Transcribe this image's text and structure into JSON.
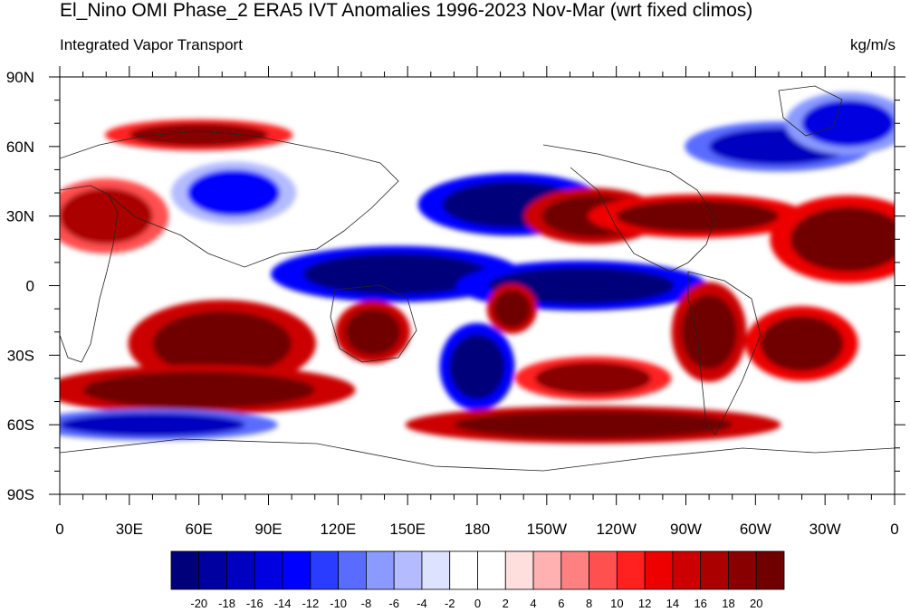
{
  "title": "El_Nino OMI Phase_2 ERA5 IVT Anomalies 1996-2023 Nov-Mar (wrt fixed climos)",
  "left_label": "Integrated Vapor Transport",
  "right_label": "kg/m/s",
  "map": {
    "lon_ticks": [
      "0",
      "30E",
      "60E",
      "90E",
      "120E",
      "150E",
      "180",
      "150W",
      "120W",
      "90W",
      "60W",
      "30W",
      "0"
    ],
    "lat_ticks": [
      "90N",
      "60N",
      "30N",
      "0",
      "30S",
      "60S",
      "90S"
    ],
    "lon_range": [
      0,
      360
    ],
    "lat_range": [
      -90,
      90
    ],
    "anomalies": [
      {
        "lon": 195,
        "lat": 35,
        "rlon": 30,
        "rlat": 10,
        "value": -22
      },
      {
        "lon": 230,
        "lat": 30,
        "rlon": 22,
        "rlat": 9,
        "value": 22
      },
      {
        "lon": 145,
        "lat": 5,
        "rlon": 40,
        "rlat": 9,
        "value": -22
      },
      {
        "lon": 225,
        "lat": 0,
        "rlon": 40,
        "rlat": 8,
        "value": -22
      },
      {
        "lon": 275,
        "lat": 30,
        "rlon": 35,
        "rlat": 7,
        "value": 20
      },
      {
        "lon": 340,
        "lat": 20,
        "rlon": 25,
        "rlat": 14,
        "value": 20
      },
      {
        "lon": 70,
        "lat": -25,
        "rlon": 30,
        "rlat": 14,
        "value": 22
      },
      {
        "lon": 135,
        "lat": -20,
        "rlon": 12,
        "rlat": 10,
        "value": 22
      },
      {
        "lon": 195,
        "lat": -10,
        "rlon": 8,
        "rlat": 8,
        "value": 22
      },
      {
        "lon": 180,
        "lat": -35,
        "rlon": 12,
        "rlat": 14,
        "value": -22
      },
      {
        "lon": 280,
        "lat": -20,
        "rlon": 12,
        "rlat": 16,
        "value": 22
      },
      {
        "lon": 320,
        "lat": -25,
        "rlon": 18,
        "rlat": 12,
        "value": 20
      },
      {
        "lon": 230,
        "lat": -40,
        "rlon": 25,
        "rlat": 7,
        "value": 18
      },
      {
        "lon": 60,
        "lat": -45,
        "rlon": 50,
        "rlat": 8,
        "value": 22
      },
      {
        "lon": 230,
        "lat": -60,
        "rlon": 60,
        "rlat": 6,
        "value": 22
      },
      {
        "lon": 40,
        "lat": -60,
        "rlon": 40,
        "rlat": 5,
        "value": -18
      },
      {
        "lon": 20,
        "lat": 30,
        "rlon": 20,
        "rlat": 12,
        "value": 16
      },
      {
        "lon": 60,
        "lat": 65,
        "rlon": 30,
        "rlat": 5,
        "value": 18
      },
      {
        "lon": 75,
        "lat": 40,
        "rlon": 20,
        "rlat": 10,
        "value": -14
      },
      {
        "lon": 310,
        "lat": 60,
        "rlon": 30,
        "rlat": 8,
        "value": -18
      },
      {
        "lon": 340,
        "lat": 70,
        "rlon": 20,
        "rlat": 10,
        "value": -16
      }
    ]
  },
  "colorbar": {
    "labels": [
      "-20",
      "-18",
      "-16",
      "-14",
      "-12",
      "-10",
      "-8",
      "-6",
      "-4",
      "-2",
      "0",
      "2",
      "4",
      "6",
      "8",
      "10",
      "12",
      "14",
      "16",
      "18",
      "20"
    ],
    "colors": [
      "#00007a",
      "#0000a0",
      "#0000c0",
      "#0000e0",
      "#0000ff",
      "#2a3cff",
      "#5a6cff",
      "#8a9aff",
      "#b4bcff",
      "#dde2ff",
      "#ffffff",
      "#ffffff",
      "#ffdede",
      "#ffb0b0",
      "#ff8080",
      "#ff5050",
      "#ff2020",
      "#ee0000",
      "#cc0000",
      "#aa0000",
      "#880000",
      "#700000"
    ]
  }
}
